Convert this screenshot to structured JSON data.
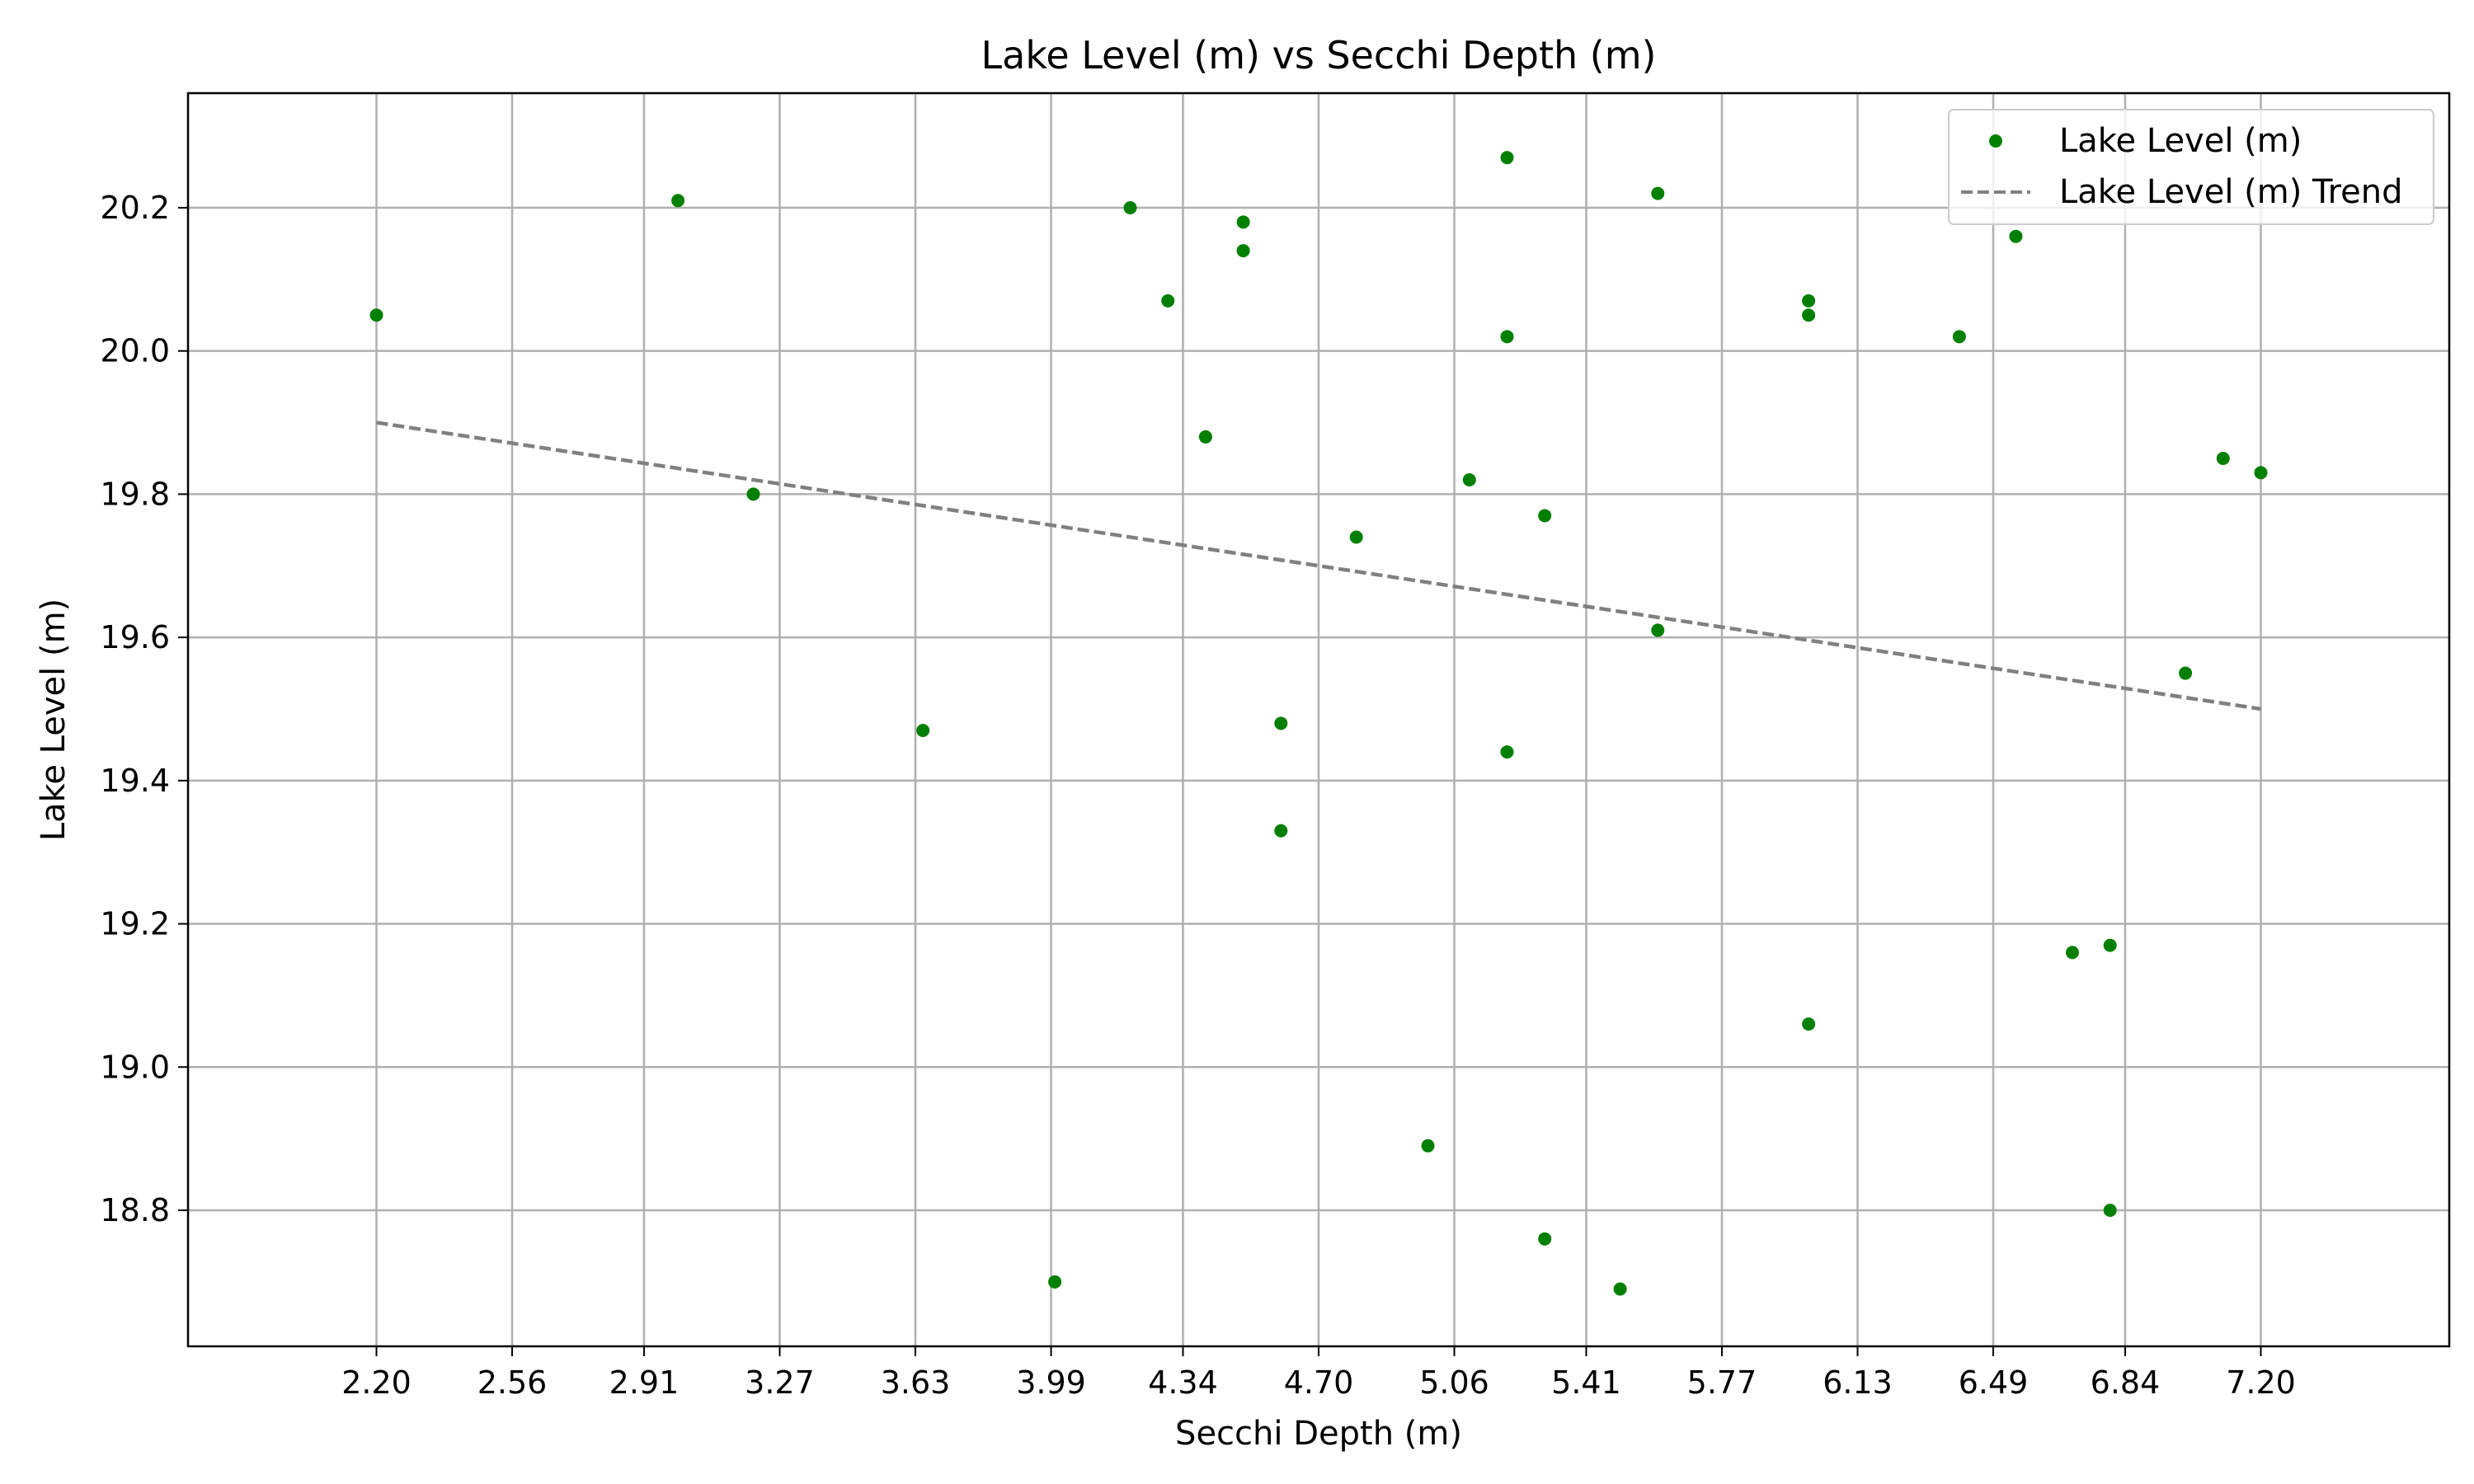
{
  "chart_data": {
    "type": "scatter",
    "title": "Lake Level (m) vs Secchi Depth (m)",
    "xlabel": "Secchi Depth (m)",
    "ylabel": "Lake Level (m)",
    "xlim": [
      1.7,
      7.7
    ],
    "ylim": [
      18.61,
      20.36
    ],
    "x_ticks": [
      "2.20",
      "2.56",
      "2.91",
      "3.27",
      "3.63",
      "3.99",
      "4.34",
      "4.70",
      "5.06",
      "5.41",
      "5.77",
      "6.13",
      "6.49",
      "6.84",
      "7.20"
    ],
    "y_ticks": [
      "18.8",
      "19.0",
      "19.2",
      "19.4",
      "19.6",
      "19.8",
      "20.0",
      "20.2"
    ],
    "grid": true,
    "legend_position": "top-right",
    "series": [
      {
        "name": "Lake Level (m)",
        "kind": "scatter",
        "color": "#008000",
        "points": [
          [
            2.2,
            20.05
          ],
          [
            3.0,
            20.21
          ],
          [
            3.2,
            19.8
          ],
          [
            3.65,
            19.47
          ],
          [
            4.0,
            18.7
          ],
          [
            4.2,
            20.2
          ],
          [
            4.3,
            20.07
          ],
          [
            4.4,
            19.88
          ],
          [
            4.5,
            20.18
          ],
          [
            4.5,
            20.14
          ],
          [
            4.6,
            19.48
          ],
          [
            4.6,
            19.33
          ],
          [
            4.8,
            19.74
          ],
          [
            4.99,
            18.89
          ],
          [
            5.1,
            19.82
          ],
          [
            5.2,
            20.27
          ],
          [
            5.2,
            20.02
          ],
          [
            5.2,
            19.44
          ],
          [
            5.3,
            19.77
          ],
          [
            5.3,
            18.76
          ],
          [
            5.5,
            18.69
          ],
          [
            5.6,
            20.22
          ],
          [
            5.6,
            19.61
          ],
          [
            6.0,
            20.07
          ],
          [
            6.0,
            20.05
          ],
          [
            6.0,
            19.06
          ],
          [
            6.4,
            20.02
          ],
          [
            6.55,
            20.16
          ],
          [
            6.7,
            19.16
          ],
          [
            6.8,
            19.17
          ],
          [
            6.8,
            18.8
          ],
          [
            7.0,
            19.55
          ],
          [
            7.1,
            19.85
          ],
          [
            7.2,
            19.83
          ]
        ]
      },
      {
        "name": "Lake Level (m) Trend",
        "kind": "line",
        "style": "dashed",
        "color": "#808080",
        "points": [
          [
            2.2,
            19.9
          ],
          [
            7.2,
            19.5
          ]
        ]
      }
    ]
  }
}
